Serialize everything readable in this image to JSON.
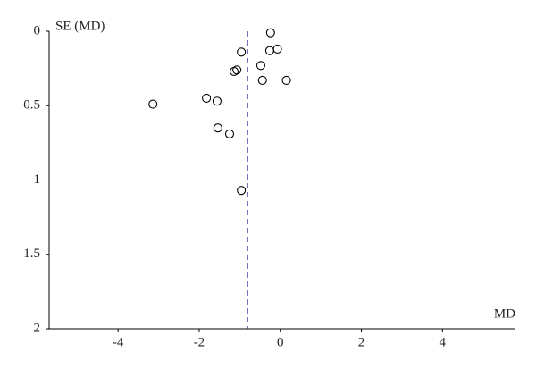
{
  "chart_data": {
    "type": "scatter",
    "x_label": "MD",
    "y_label": "SE (MD)",
    "x": [
      -0.24,
      -0.07,
      -0.26,
      -0.96,
      -0.48,
      -1.07,
      -1.14,
      -0.44,
      0.15,
      -1.82,
      -1.56,
      -3.14,
      -1.54,
      -1.25,
      -0.96
    ],
    "values": [
      0.01,
      0.12,
      0.13,
      0.14,
      0.23,
      0.26,
      0.27,
      0.33,
      0.33,
      0.45,
      0.47,
      0.49,
      0.65,
      0.69,
      1.07
    ],
    "xlim": [
      -5.7,
      5.8
    ],
    "ylim": [
      0,
      2
    ],
    "y_inverted": true,
    "xticks": [
      -4,
      -2,
      0,
      2,
      4
    ],
    "yticks": [
      0,
      0.5,
      1,
      1.5,
      2
    ],
    "reference_line": -0.81,
    "reference_color": "#3b3b9a",
    "color": "#000000"
  }
}
